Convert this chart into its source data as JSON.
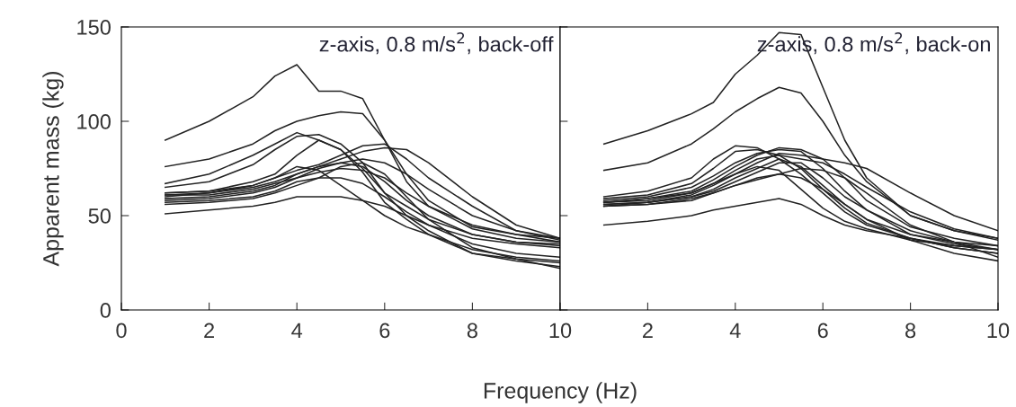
{
  "chart_data": [
    {
      "type": "line",
      "xlabel": "Frequency (Hz)",
      "ylabel": "Apparent mass (kg)",
      "annotations": [
        "z-axis, 0.8 m/s$^{2}$, back-off"
      ],
      "xlim": [
        0,
        10
      ],
      "ylim": [
        0,
        150
      ],
      "xticks": [
        0,
        2,
        4,
        6,
        8,
        10
      ],
      "yticks": [
        0,
        50,
        100,
        150
      ],
      "grid": false,
      "legend": false,
      "x": [
        1,
        2,
        3,
        3.5,
        4,
        4.5,
        5,
        5.5,
        6,
        6.5,
        7,
        8,
        9,
        10
      ],
      "series": [
        {
          "color": "#222222",
          "values": [
            90,
            100,
            113,
            124,
            130,
            116,
            116,
            112,
            90,
            68,
            55,
            45,
            40,
            38
          ]
        },
        {
          "color": "#222222",
          "values": [
            76,
            80,
            88,
            95,
            100,
            103,
            105,
            104,
            90,
            72,
            58,
            44,
            40,
            36
          ]
        },
        {
          "color": "#222222",
          "values": [
            67,
            72,
            82,
            88,
            94,
            90,
            85,
            75,
            62,
            55,
            48,
            40,
            36,
            35
          ]
        },
        {
          "color": "#222222",
          "values": [
            65,
            68,
            77,
            85,
            92,
            93,
            88,
            78,
            62,
            50,
            42,
            30,
            27,
            25
          ]
        },
        {
          "color": "#222222",
          "values": [
            62,
            63,
            68,
            72,
            82,
            90,
            85,
            73,
            57,
            48,
            40,
            30,
            26,
            23
          ]
        },
        {
          "color": "#222222",
          "values": [
            62,
            63,
            66,
            70,
            74,
            77,
            82,
            87,
            88,
            80,
            70,
            55,
            42,
            38
          ]
        },
        {
          "color": "#222222",
          "values": [
            60,
            62,
            65,
            68,
            72,
            76,
            80,
            84,
            86,
            85,
            78,
            60,
            45,
            38
          ]
        },
        {
          "color": "#222222",
          "values": [
            61,
            61,
            64,
            67,
            70,
            75,
            78,
            80,
            78,
            72,
            64,
            50,
            42,
            37
          ]
        },
        {
          "color": "#222222",
          "values": [
            59,
            60,
            63,
            66,
            72,
            76,
            78,
            76,
            68,
            58,
            50,
            40,
            36,
            34
          ]
        },
        {
          "color": "#222222",
          "values": [
            58,
            59,
            62,
            65,
            70,
            73,
            75,
            74,
            70,
            62,
            55,
            43,
            38,
            36
          ]
        },
        {
          "color": "#222222",
          "values": [
            57,
            58,
            60,
            63,
            68,
            70,
            70,
            67,
            60,
            52,
            45,
            35,
            30,
            28
          ]
        },
        {
          "color": "#222222",
          "values": [
            56,
            57,
            59,
            62,
            66,
            70,
            76,
            78,
            72,
            60,
            48,
            33,
            27,
            22
          ]
        },
        {
          "color": "#222222",
          "values": [
            51,
            53,
            55,
            57,
            60,
            60,
            60,
            58,
            55,
            50,
            45,
            38,
            35,
            33
          ]
        },
        {
          "color": "#222222",
          "values": [
            61,
            62,
            66,
            70,
            76,
            74,
            66,
            58,
            50,
            44,
            40,
            32,
            28,
            26
          ]
        }
      ]
    },
    {
      "type": "line",
      "annotations": [
        "z-axis, 0.8 m/s$^{2}$, back-on"
      ],
      "xlim": [
        0,
        10
      ],
      "ylim": [
        0,
        150
      ],
      "xticks": [
        {
          "value": 0,
          "label": null
        },
        2,
        4,
        6,
        8,
        10
      ],
      "yticks": [
        {
          "value": 0,
          "label": null
        },
        {
          "value": 50,
          "label": null
        },
        {
          "value": 100,
          "label": null
        },
        {
          "value": 150,
          "label": null
        }
      ],
      "tick_labels": "x",
      "grid": false,
      "legend": false,
      "x": [
        1,
        2,
        3,
        3.5,
        4,
        4.5,
        5,
        5.5,
        6,
        6.5,
        7,
        8,
        9,
        10
      ],
      "series": [
        {
          "color": "#222222",
          "values": [
            88,
            95,
            104,
            110,
            125,
            135,
            147,
            146,
            118,
            90,
            70,
            50,
            42,
            37
          ]
        },
        {
          "color": "#222222",
          "values": [
            74,
            78,
            88,
            96,
            105,
            112,
            118,
            115,
            100,
            82,
            68,
            50,
            42,
            38
          ]
        },
        {
          "color": "#222222",
          "values": [
            60,
            63,
            70,
            80,
            87,
            86,
            80,
            72,
            62,
            52,
            45,
            38,
            33,
            30
          ]
        },
        {
          "color": "#222222",
          "values": [
            59,
            61,
            67,
            75,
            84,
            85,
            82,
            75,
            64,
            54,
            46,
            38,
            34,
            32
          ]
        },
        {
          "color": "#222222",
          "values": [
            58,
            60,
            65,
            71,
            78,
            83,
            85,
            84,
            75,
            63,
            53,
            40,
            35,
            32
          ]
        },
        {
          "color": "#222222",
          "values": [
            57,
            59,
            63,
            69,
            76,
            82,
            86,
            85,
            80,
            70,
            58,
            44,
            38,
            34
          ]
        },
        {
          "color": "#222222",
          "values": [
            57,
            59,
            62,
            67,
            74,
            80,
            82,
            80,
            78,
            72,
            65,
            52,
            43,
            38
          ]
        },
        {
          "color": "#222222",
          "values": [
            56,
            57,
            61,
            66,
            72,
            78,
            83,
            82,
            80,
            78,
            75,
            62,
            50,
            42
          ]
        },
        {
          "color": "#222222",
          "values": [
            56,
            57,
            60,
            64,
            70,
            75,
            80,
            76,
            66,
            56,
            48,
            40,
            36,
            34
          ]
        },
        {
          "color": "#222222",
          "values": [
            55,
            57,
            60,
            63,
            68,
            73,
            78,
            78,
            70,
            60,
            53,
            42,
            36,
            32
          ]
        },
        {
          "color": "#222222",
          "values": [
            55,
            56,
            59,
            62,
            66,
            70,
            72,
            75,
            74,
            70,
            62,
            45,
            36,
            28
          ]
        },
        {
          "color": "#222222",
          "values": [
            45,
            47,
            50,
            53,
            55,
            57,
            59,
            56,
            50,
            45,
            42,
            38,
            33,
            30
          ]
        },
        {
          "color": "#222222",
          "values": [
            57,
            58,
            62,
            67,
            72,
            76,
            74,
            64,
            54,
            47,
            43,
            37,
            34,
            32
          ]
        },
        {
          "color": "#222222",
          "values": [
            55,
            56,
            58,
            62,
            66,
            69,
            72,
            70,
            64,
            56,
            48,
            37,
            30,
            26
          ]
        }
      ]
    }
  ]
}
